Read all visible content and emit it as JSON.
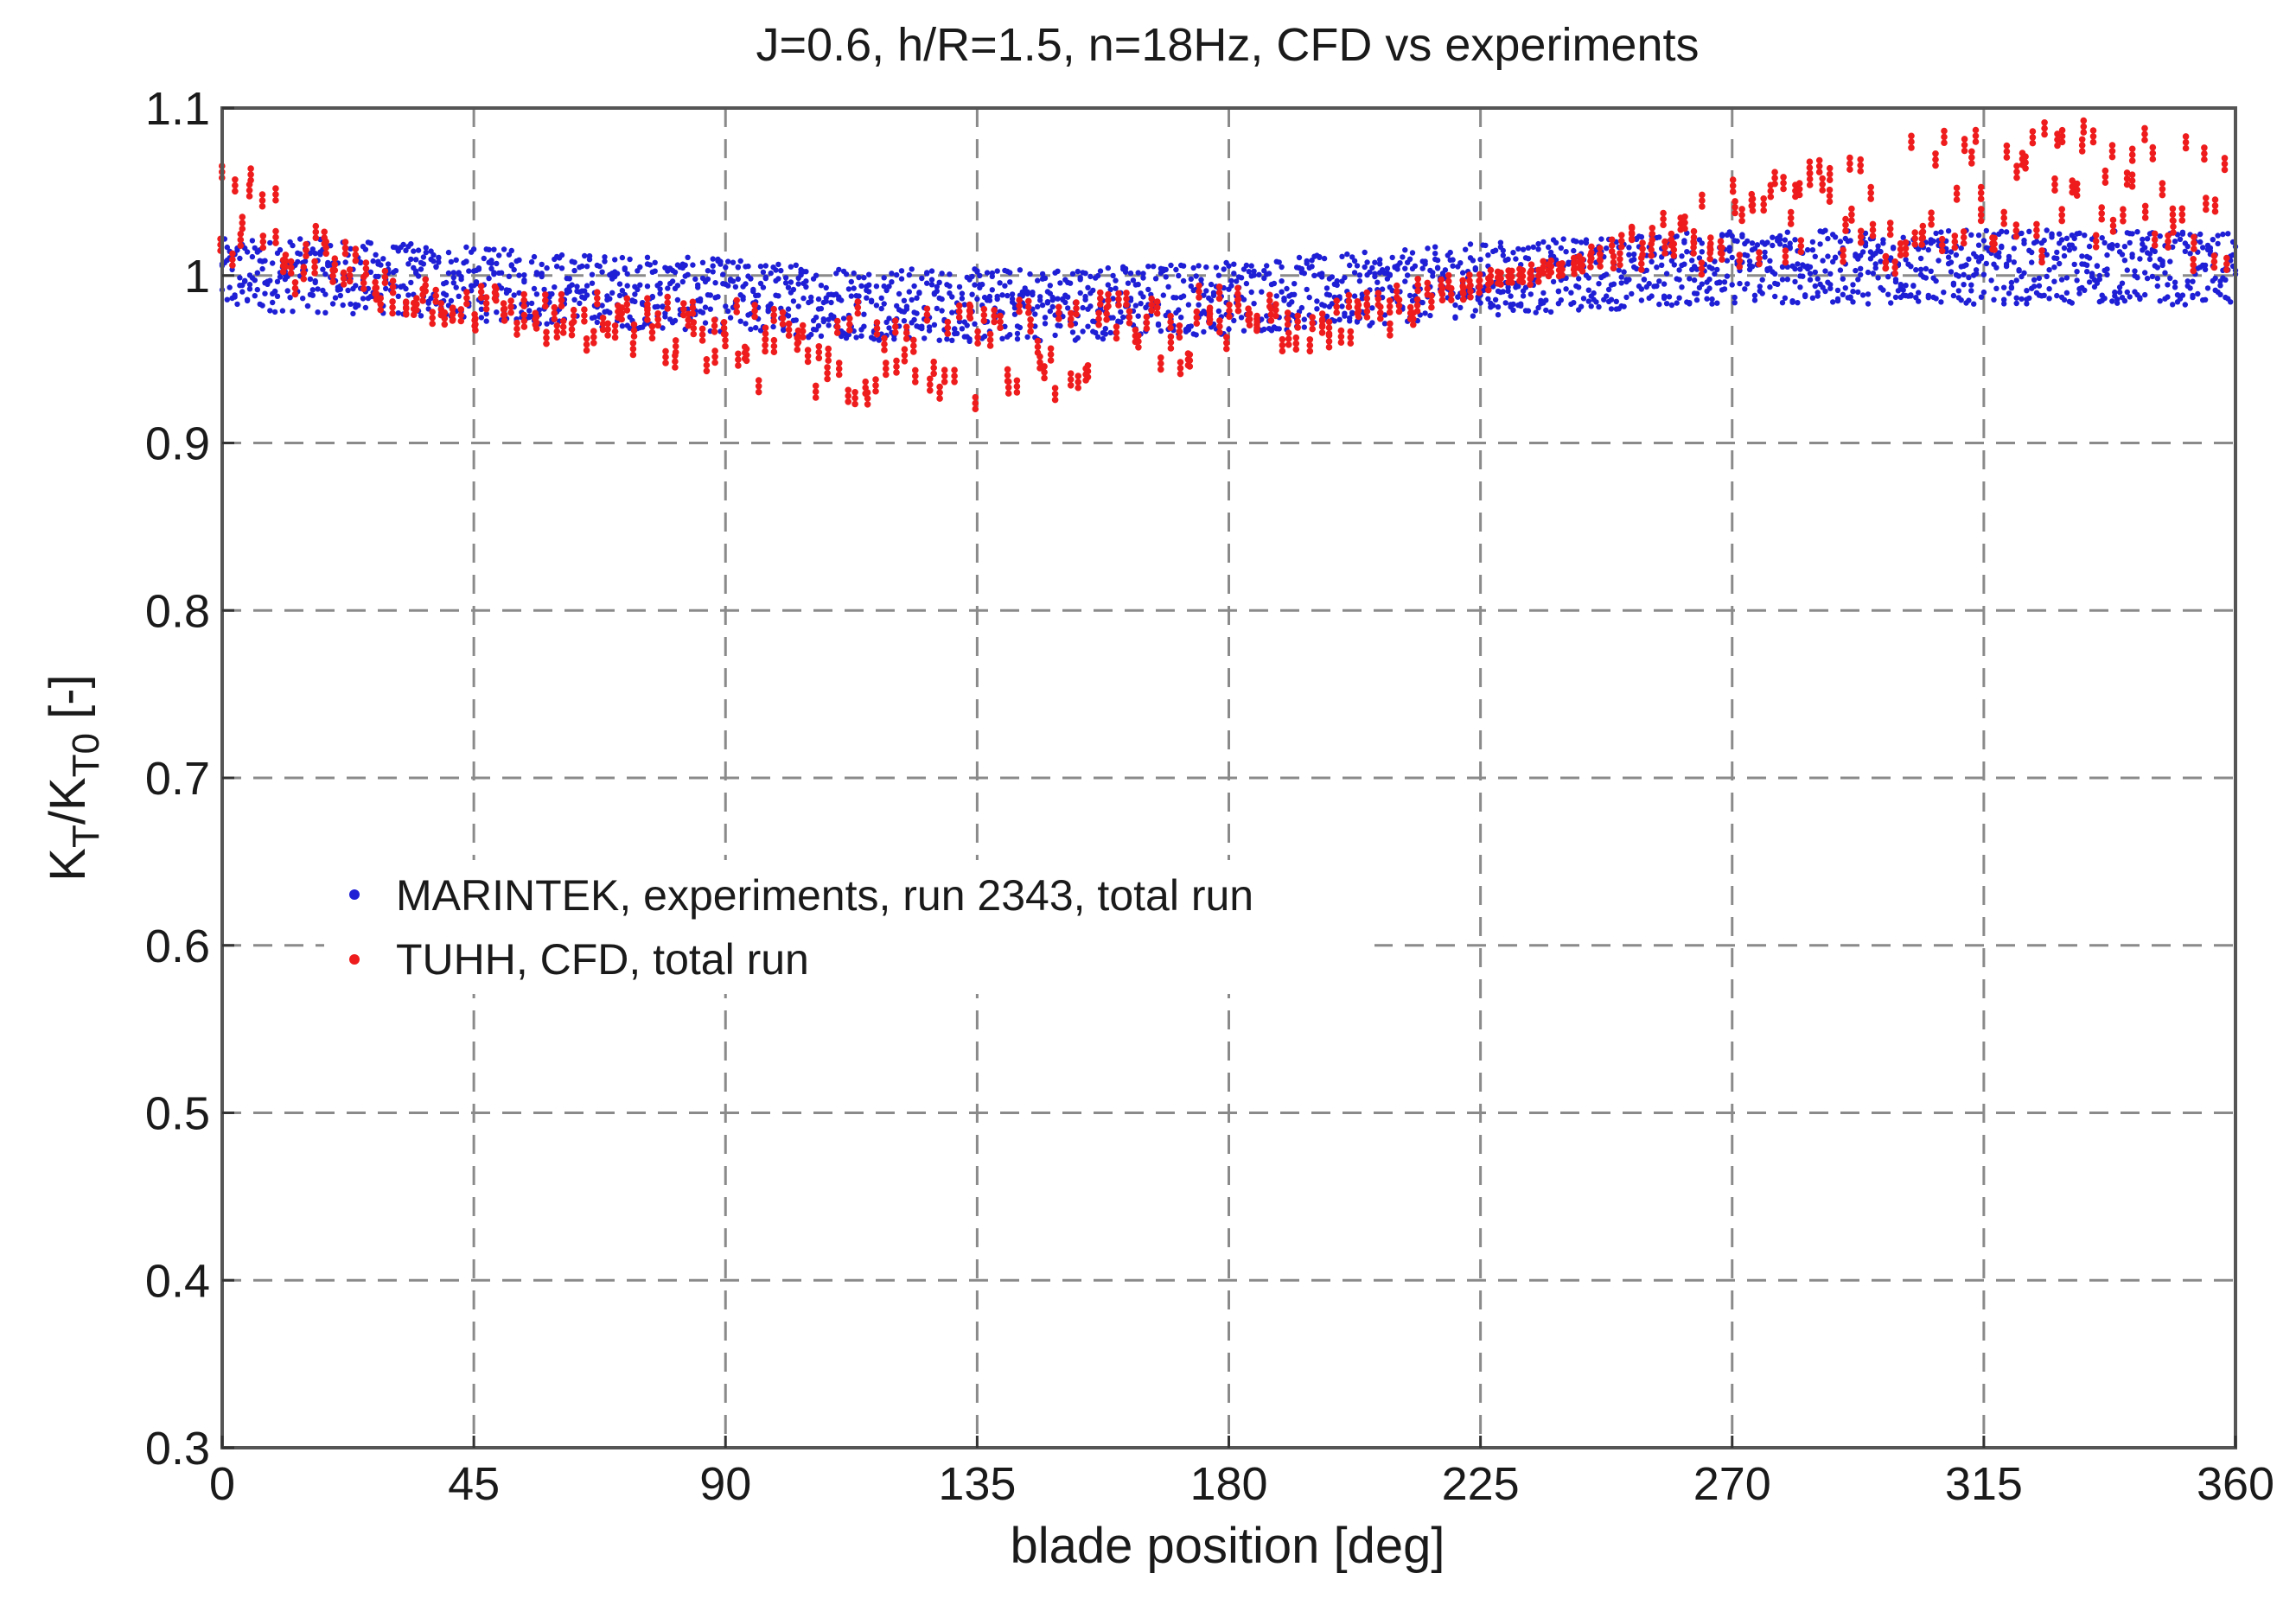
{
  "chart_data": {
    "type": "scatter",
    "title": "J=0.6, h/R=1.5, n=18Hz, CFD vs experiments",
    "xlabel": "blade position [deg]",
    "ylabel": {
      "main": "K",
      "sub1": "T",
      "sep": "/K",
      "sub2": "T0",
      "unit": " [-]"
    },
    "xlim": [
      0,
      360
    ],
    "ylim": [
      0.3,
      1.1
    ],
    "xticks": [
      0,
      45,
      90,
      135,
      180,
      225,
      270,
      315,
      360
    ],
    "yticks": [
      0.3,
      0.4,
      0.5,
      0.6,
      0.7,
      0.8,
      0.9,
      1,
      1.1
    ],
    "ytick_labels": [
      "0.3",
      "0.4",
      "0.5",
      "0.6",
      "0.7",
      "0.8",
      "0.9",
      "1",
      "1.1"
    ],
    "grid": true,
    "legend_position": "middle-left",
    "series": [
      {
        "name": "MARINTEK, experiments, run 2343, total run",
        "color": "#1f1fd6",
        "marker": "dot",
        "band_spread": 0.022,
        "curve_x": [
          0,
          15,
          30,
          45,
          60,
          75,
          90,
          105,
          120,
          135,
          150,
          165,
          180,
          195,
          210,
          225,
          240,
          255,
          270,
          285,
          300,
          315,
          330,
          345,
          360
        ],
        "curve_y": [
          1.0,
          1.0,
          0.998,
          0.995,
          0.992,
          0.99,
          0.988,
          0.985,
          0.983,
          0.982,
          0.983,
          0.985,
          0.987,
          0.99,
          0.993,
          0.998,
          1.0,
          1.003,
          1.005,
          1.005,
          1.005,
          1.005,
          1.005,
          1.005,
          1.003
        ]
      },
      {
        "name": "TUHH, CFD, total run",
        "color": "#ee1c1c",
        "marker": "dot",
        "curve_x": [
          0,
          5,
          10,
          20,
          30,
          45,
          60,
          75,
          90,
          100,
          110,
          120,
          135,
          150,
          165,
          180,
          195,
          210,
          225,
          240,
          250,
          260,
          270,
          285,
          300,
          315,
          330,
          345,
          360
        ],
        "curve_y_upper": [
          1.06,
          1.06,
          1.045,
          1.02,
          1.0,
          0.99,
          0.985,
          0.982,
          0.98,
          0.98,
          0.98,
          0.98,
          0.98,
          0.982,
          0.985,
          0.99,
          0.99,
          0.99,
          0.995,
          1.005,
          1.02,
          1.035,
          1.055,
          1.065,
          1.075,
          1.085,
          1.09,
          1.085,
          1.075
        ],
        "curve_y_lower": [
          1.0,
          0.995,
          0.99,
          0.985,
          0.975,
          0.965,
          0.955,
          0.945,
          0.935,
          0.925,
          0.92,
          0.92,
          0.92,
          0.925,
          0.935,
          0.945,
          0.955,
          0.965,
          0.985,
          1.0,
          1.005,
          1.0,
          1.0,
          1.0,
          1.0,
          1.005,
          1.005,
          1.005,
          1.0
        ]
      }
    ]
  }
}
